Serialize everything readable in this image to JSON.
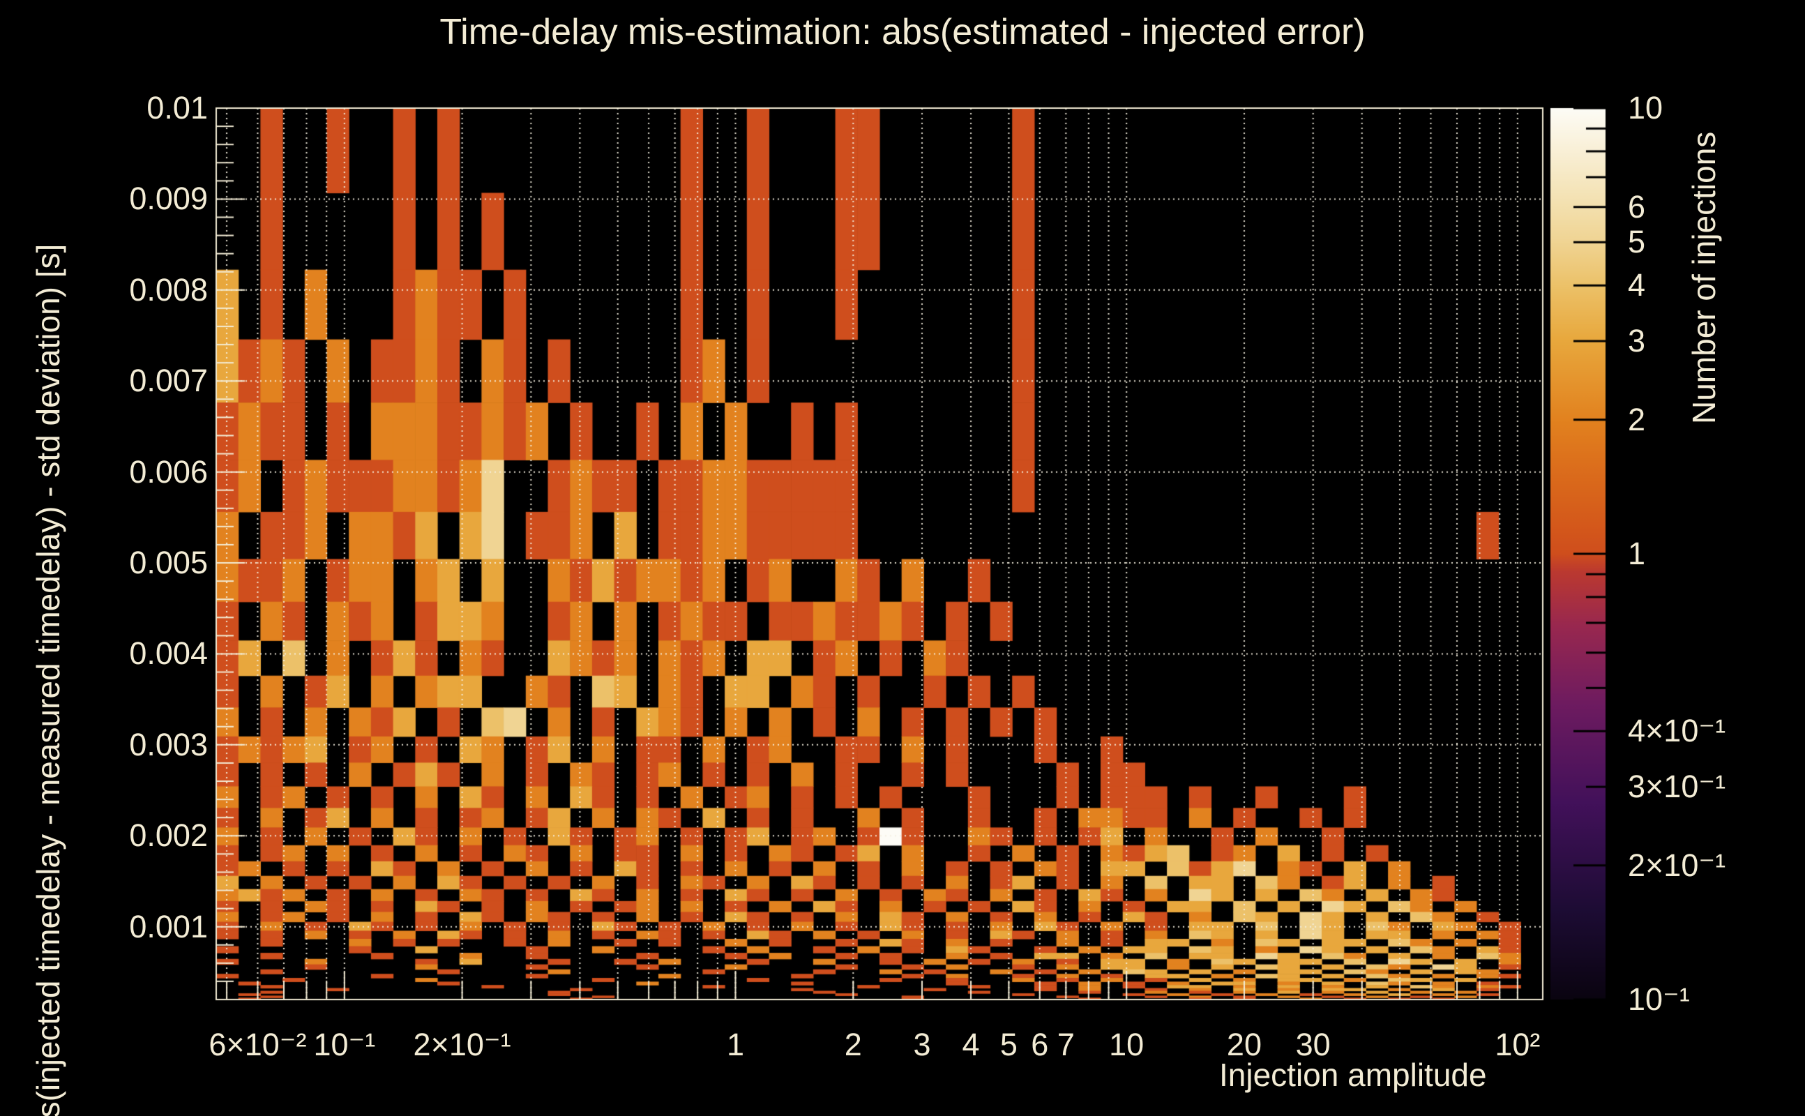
{
  "title": "Time-delay mis-estimation: abs(estimated - injected error)",
  "colors": {
    "background": "#000000",
    "text": "#f3ecd5",
    "grid": "#f5eedd",
    "frame": "#f3ecd5",
    "colorbar_tick": "#000000"
  },
  "chart_data": {
    "type": "heatmap",
    "title": "Time-delay mis-estimation: abs(estimated - injected error)",
    "x_axis": {
      "title": "Injection amplitude",
      "scale": "log",
      "min": 0.047,
      "max": 116,
      "tick_labels": [
        {
          "v": 0.06,
          "label": "6×10⁻²"
        },
        {
          "v": 0.1,
          "label": "10⁻¹"
        },
        {
          "v": 0.2,
          "label": "2×10⁻¹"
        },
        {
          "v": 1,
          "label": "1"
        },
        {
          "v": 2,
          "label": "2"
        },
        {
          "v": 3,
          "label": "3"
        },
        {
          "v": 4,
          "label": "4"
        },
        {
          "v": 5,
          "label": "5"
        },
        {
          "v": 6,
          "label": "6"
        },
        {
          "v": 7,
          "label": "7"
        },
        {
          "v": 10,
          "label": "10"
        },
        {
          "v": 20,
          "label": "20"
        },
        {
          "v": 30,
          "label": "30"
        },
        {
          "v": 100,
          "label": "10²"
        }
      ]
    },
    "y_axis": {
      "title": "bs(injected timedelay - measured timedelay) - std deviation) [s]",
      "scale": "linear",
      "min": 0.0002,
      "max": 0.01,
      "tick_labels": [
        {
          "v": 0.001,
          "label": "0.001"
        },
        {
          "v": 0.002,
          "label": "0.002"
        },
        {
          "v": 0.003,
          "label": "0.003"
        },
        {
          "v": 0.004,
          "label": "0.004"
        },
        {
          "v": 0.005,
          "label": "0.005"
        },
        {
          "v": 0.006,
          "label": "0.006"
        },
        {
          "v": 0.007,
          "label": "0.007"
        },
        {
          "v": 0.008,
          "label": "0.008"
        },
        {
          "v": 0.009,
          "label": "0.009"
        },
        {
          "v": 0.01,
          "label": "0.01"
        }
      ]
    },
    "colorbar": {
      "title": "Number of injections",
      "scale": "log",
      "min": 0.1,
      "max": 10,
      "tick_labels": [
        {
          "v": 10,
          "label": "10"
        },
        {
          "v": 6,
          "label": "6"
        },
        {
          "v": 5,
          "label": "5"
        },
        {
          "v": 4,
          "label": "4"
        },
        {
          "v": 3,
          "label": "3"
        },
        {
          "v": 2,
          "label": "2"
        },
        {
          "v": 1,
          "label": "1"
        },
        {
          "v": 0.4,
          "label": "4×10⁻¹"
        },
        {
          "v": 0.3,
          "label": "3×10⁻¹"
        },
        {
          "v": 0.2,
          "label": "2×10⁻¹"
        },
        {
          "v": 0.1,
          "label": "10⁻¹"
        }
      ],
      "palette_stops": [
        [
          0.0,
          "#0a0410"
        ],
        [
          0.1,
          "#1d0c34"
        ],
        [
          0.22,
          "#42115a"
        ],
        [
          0.33,
          "#6d1b60"
        ],
        [
          0.42,
          "#99284f"
        ],
        [
          0.48,
          "#bb3930"
        ],
        [
          0.5,
          "#cf4e1d"
        ],
        [
          0.53,
          "#d4581b"
        ],
        [
          0.6,
          "#dc6f1c"
        ],
        [
          0.65,
          "#e2821f"
        ],
        [
          0.74,
          "#e8a83d"
        ],
        [
          0.8,
          "#ecc168"
        ],
        [
          0.85,
          "#f0d493"
        ],
        [
          0.89,
          "#f3e0ae"
        ],
        [
          0.95,
          "#f9efd5"
        ],
        [
          1.0,
          "#fdfcf6"
        ]
      ]
    },
    "bins": {
      "x": {
        "count": 60,
        "min": 0.047,
        "max": 116,
        "spacing": "log"
      },
      "y": {
        "count": 40,
        "min": 0.0002,
        "max": 0.01,
        "spacing": "log"
      }
    },
    "cell_value_encoding": {
      ".": 0,
      "1-9": "injection count",
      "A": 10
    },
    "grid_rows_top_to_bottom": [
      "..1..1..1.1..........1..1...11......1.......................",
      "..1.....1.1.1........1..1...11......1.......................",
      "3.1.2...1211.1.......1..1...1.......1.......................",
      "3121.2.1121.21.1.....12.1...........1.......................",
      "1211.1.22211212.1..1.2.2..1.1.......1.......................",
      "12.1211122125..1211.112211111.......1.......................",
      "2.112.2213.35.112.3.112211111............................1..",
      "2112.122.23.3..21312212.12..21.2..1.........................",
      "1.21.212.1332..12.2.1211.1121121.1.1........................",
      "13.4.2.131.21..3212.212.33.12.1.21..........................",
      "1.2.13.2.233..21.43.21.33.21.1..1.1.1.......................",
      "2.1.2.213.1.45.2.1.321.2.2.1.2.1.1.1.1......................",
      "12123.12.1.32.13.2.11.2.12..11.2.1...1..1...................",
      "1.1.1.2.131.2.1.21.12.1.1.2.1..1.1....1.11..................",
      "2.12.1.1.2.31.2.31.1.2.12.1.1.1...1...1.111.1..1...1........",
      "1.2.13.2.1.12.13.2.21.3.1.1..2.1..1..1.2211.2.1..1.1........",
      "2.1.2.1.31.2.1.31.12.1.13.12.1A1..21.1.13.2..1.2..1.........",
      "1.12.2.1.2.1.21.2.11.2.1.21.13.2..1.2.1.2134.12.3.1.1.......",
      "12.1.1.31.2.1.2.1.31.1.2.1.2.1.2.1.1.21.33.4135.21.3.2......",
      "3.2.1.1.2.31.1.1.2.1.21.2.31.1.1.2.13.1.2.4.33.42.13.2.1....",
      "2312.1.2.1.21.1.31.2.1.31.1.2.1.21.2.1.31.2.53.3.42.3.21....",
      "1.1.21.1.31.1.2.1.12.2.1.2.31.2.1.1.31.2.1.33.4.3.53.42.2...",
      "2.12.1.2.1.31.21.1.2.1.31.1.2.31.2.1.2.1.31.2.43.53.3.42.1..",
      "1.2.1.31.1.2.1.1.31.1.2.1.2.1.31.1.2.31.2.1.33.4.53.42.32.1.",
      "1.1.2.1.2.31.1.2.1.21.1.31.2.1.2.1.31.2.1.2.43.3.53.33.2.21.",
      "..1...2.1.1..1.2..1.1..2.1..1.31.2.1..2.1.33.2.43.33.42.2.1.",
      "1.....1..3....1..2....1.2..1.2.1.31..1.2.33.43.2.53.3.42.31.",
      "..1....1...2..1....1...1.2..1.1..2.1.33.2.4.33.53.42.3.2.42.",
      "1...2....1.3...1..1.2...1..2..1.2.1.2.1.33.2.43.33.4.53.3.2.",
      "....1....2....1....1...2....1..1.2..1.2.33.2.3.43.3.42.53.1.",
      "..1.......1....2......1....1..2.1..2.1.2.43.3.2.33.42.3.32..",
      "1......1......1.....2.....1....1.2..1.2.1.33.2.43.3.42.2.21.",
      "...1.....2.......1......1.....1..1..2.1.2.1.3.2.33.2.43.3...",
      ".1........1........2......1......1...1.2.1.2.33.2.3.42.2.1..",
      "..1.........1.........1......1....1..1.2.1.33.2.3.2.3.42.21.",
      ".....1..........1.........1.....1....1.2..1.2.3.2.33.2.3.1..",
      "..1............1...........1......1....1..2.1.2.3.2.3.2.2...",
      ".1.............1............1.......1....1.2.1.2.1.2.3.2.1..",
      "..1..............1.............1......1...1.2.1.2.1.2.1.2...",
      ".1..............1..............1.......1....1.1..2.1.1.1...."
    ]
  }
}
